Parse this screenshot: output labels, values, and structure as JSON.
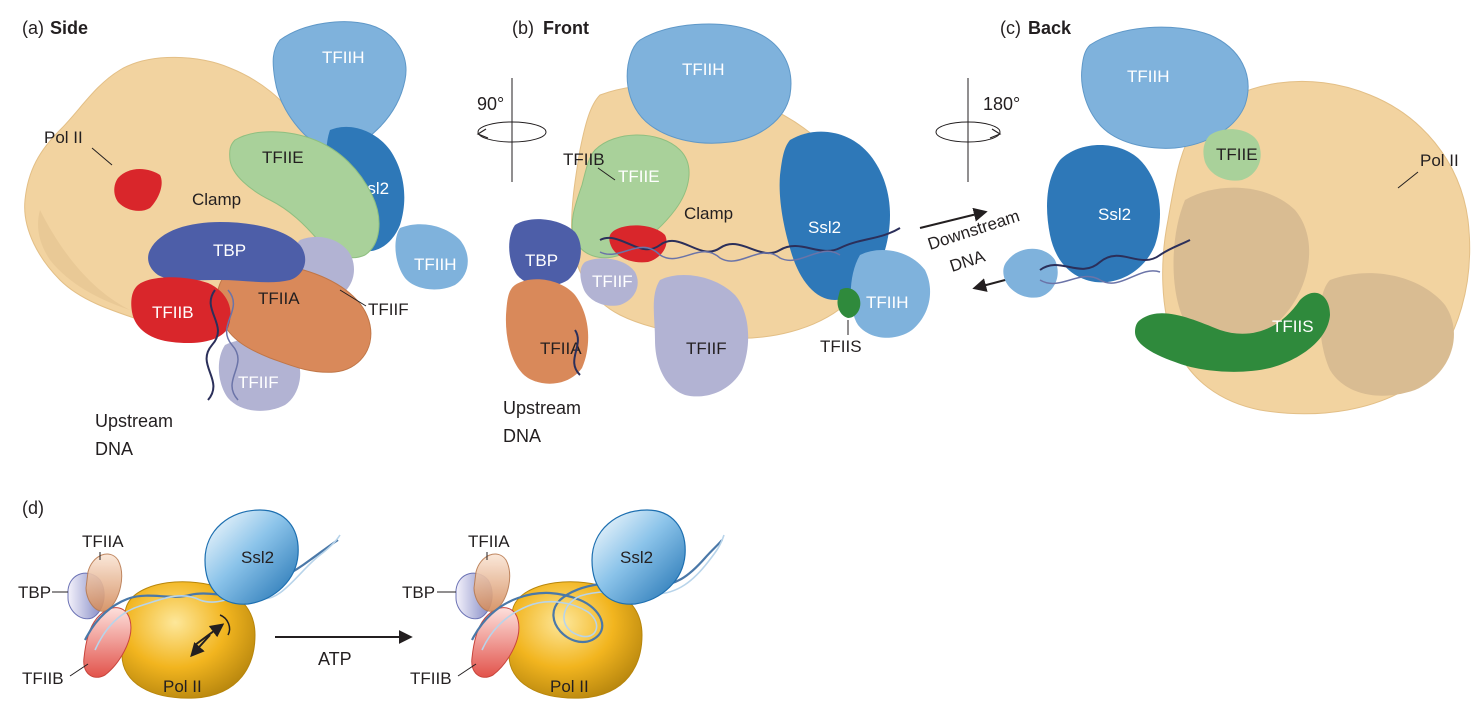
{
  "panels": {
    "a": {
      "tag": "(a)",
      "title": "Side"
    },
    "b": {
      "tag": "(b)",
      "title": "Front"
    },
    "c": {
      "tag": "(c)",
      "title": "Back"
    },
    "d": {
      "tag": "(d)"
    }
  },
  "rotations": {
    "first": "90°",
    "second": "180°"
  },
  "labels": {
    "pol2": "Pol II",
    "tfiih": "TFIIH",
    "tfiie": "TFIIE",
    "ssl2": "Ssl2",
    "clamp": "Clamp",
    "tbp": "TBP",
    "tfiib": "TFIIB",
    "tfiia": "TFIIA",
    "tfiif": "TFIIF",
    "tfiis": "TFIIS",
    "upstream": "Upstream",
    "dna": "DNA",
    "downstream": "Downstream",
    "atp": "ATP"
  },
  "colors": {
    "pol2": "#f2d3a0",
    "pol2_back": "#d9bc92",
    "tfiih": "#7fb2dc",
    "ssl2": "#2e78b8",
    "tfiie": "#a9d19a",
    "tbp": "#4d5ea8",
    "tfiib": "#d9262b",
    "tfiia": "#d9895a",
    "tfiif": "#b2b3d3",
    "tfiis": "#2f8a3c",
    "pol2_schematic": "#f0b520",
    "dna": "#2b2f5a"
  }
}
